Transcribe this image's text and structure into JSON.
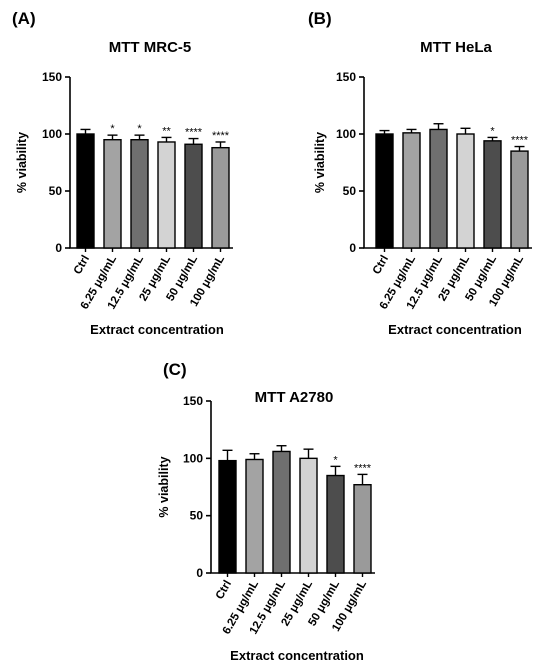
{
  "chart_data": [
    {
      "type": "bar",
      "panel_label": "(A)",
      "title": "MTT MRC-5",
      "xlabel": "Extract concentration",
      "ylabel": "% viability",
      "ylim": [
        0,
        150
      ],
      "yticks": [
        0,
        50,
        100,
        150
      ],
      "grid": false,
      "legend": "none",
      "categories": [
        "Ctrl",
        "6.25 μg/mL",
        "12.5 μg/mL",
        "25 μg/mL",
        "50 μg/mL",
        "100 μg/mL"
      ],
      "values": [
        100,
        95,
        95,
        93,
        91,
        88
      ],
      "error_upper": [
        4,
        4,
        4,
        4,
        5,
        5
      ],
      "significance": [
        "",
        "*",
        "*",
        "**",
        "****",
        "****"
      ],
      "bar_colors": [
        "#000000",
        "#a3a3a3",
        "#6f6f6f",
        "#d3d3d3",
        "#4d4d4d",
        "#9a9a9a"
      ]
    },
    {
      "type": "bar",
      "panel_label": "(B)",
      "title": "MTT HeLa",
      "xlabel": "Extract concentration",
      "ylabel": "% viability",
      "ylim": [
        0,
        150
      ],
      "yticks": [
        0,
        50,
        100,
        150
      ],
      "grid": false,
      "legend": "none",
      "categories": [
        "Ctrl",
        "6.25 μg/mL",
        "12.5 μg/mL",
        "25 μg/mL",
        "50 μg/mL",
        "100 μg/mL"
      ],
      "values": [
        100,
        101,
        104,
        100,
        94,
        85
      ],
      "error_upper": [
        3,
        3,
        5,
        5,
        3,
        4
      ],
      "significance": [
        "",
        "",
        "",
        "",
        "*",
        "****"
      ],
      "bar_colors": [
        "#000000",
        "#a3a3a3",
        "#6f6f6f",
        "#d3d3d3",
        "#4d4d4d",
        "#9a9a9a"
      ]
    },
    {
      "type": "bar",
      "panel_label": "(C)",
      "title": "MTT A2780",
      "xlabel": "Extract concentration",
      "ylabel": "% viability",
      "ylim": [
        0,
        150
      ],
      "yticks": [
        0,
        50,
        100,
        150
      ],
      "grid": false,
      "legend": "none",
      "categories": [
        "Ctrl",
        "6.25 μg/mL",
        "12.5 μg/mL",
        "25 μg/mL",
        "50 μg/mL",
        "100 μg/mL"
      ],
      "values": [
        98,
        99,
        106,
        100,
        85,
        77
      ],
      "error_upper": [
        9,
        5,
        5,
        8,
        8,
        9
      ],
      "significance": [
        "",
        "",
        "",
        "",
        "*",
        "****"
      ],
      "bar_colors": [
        "#000000",
        "#a3a3a3",
        "#6f6f6f",
        "#d3d3d3",
        "#4d4d4d",
        "#9a9a9a"
      ]
    }
  ]
}
